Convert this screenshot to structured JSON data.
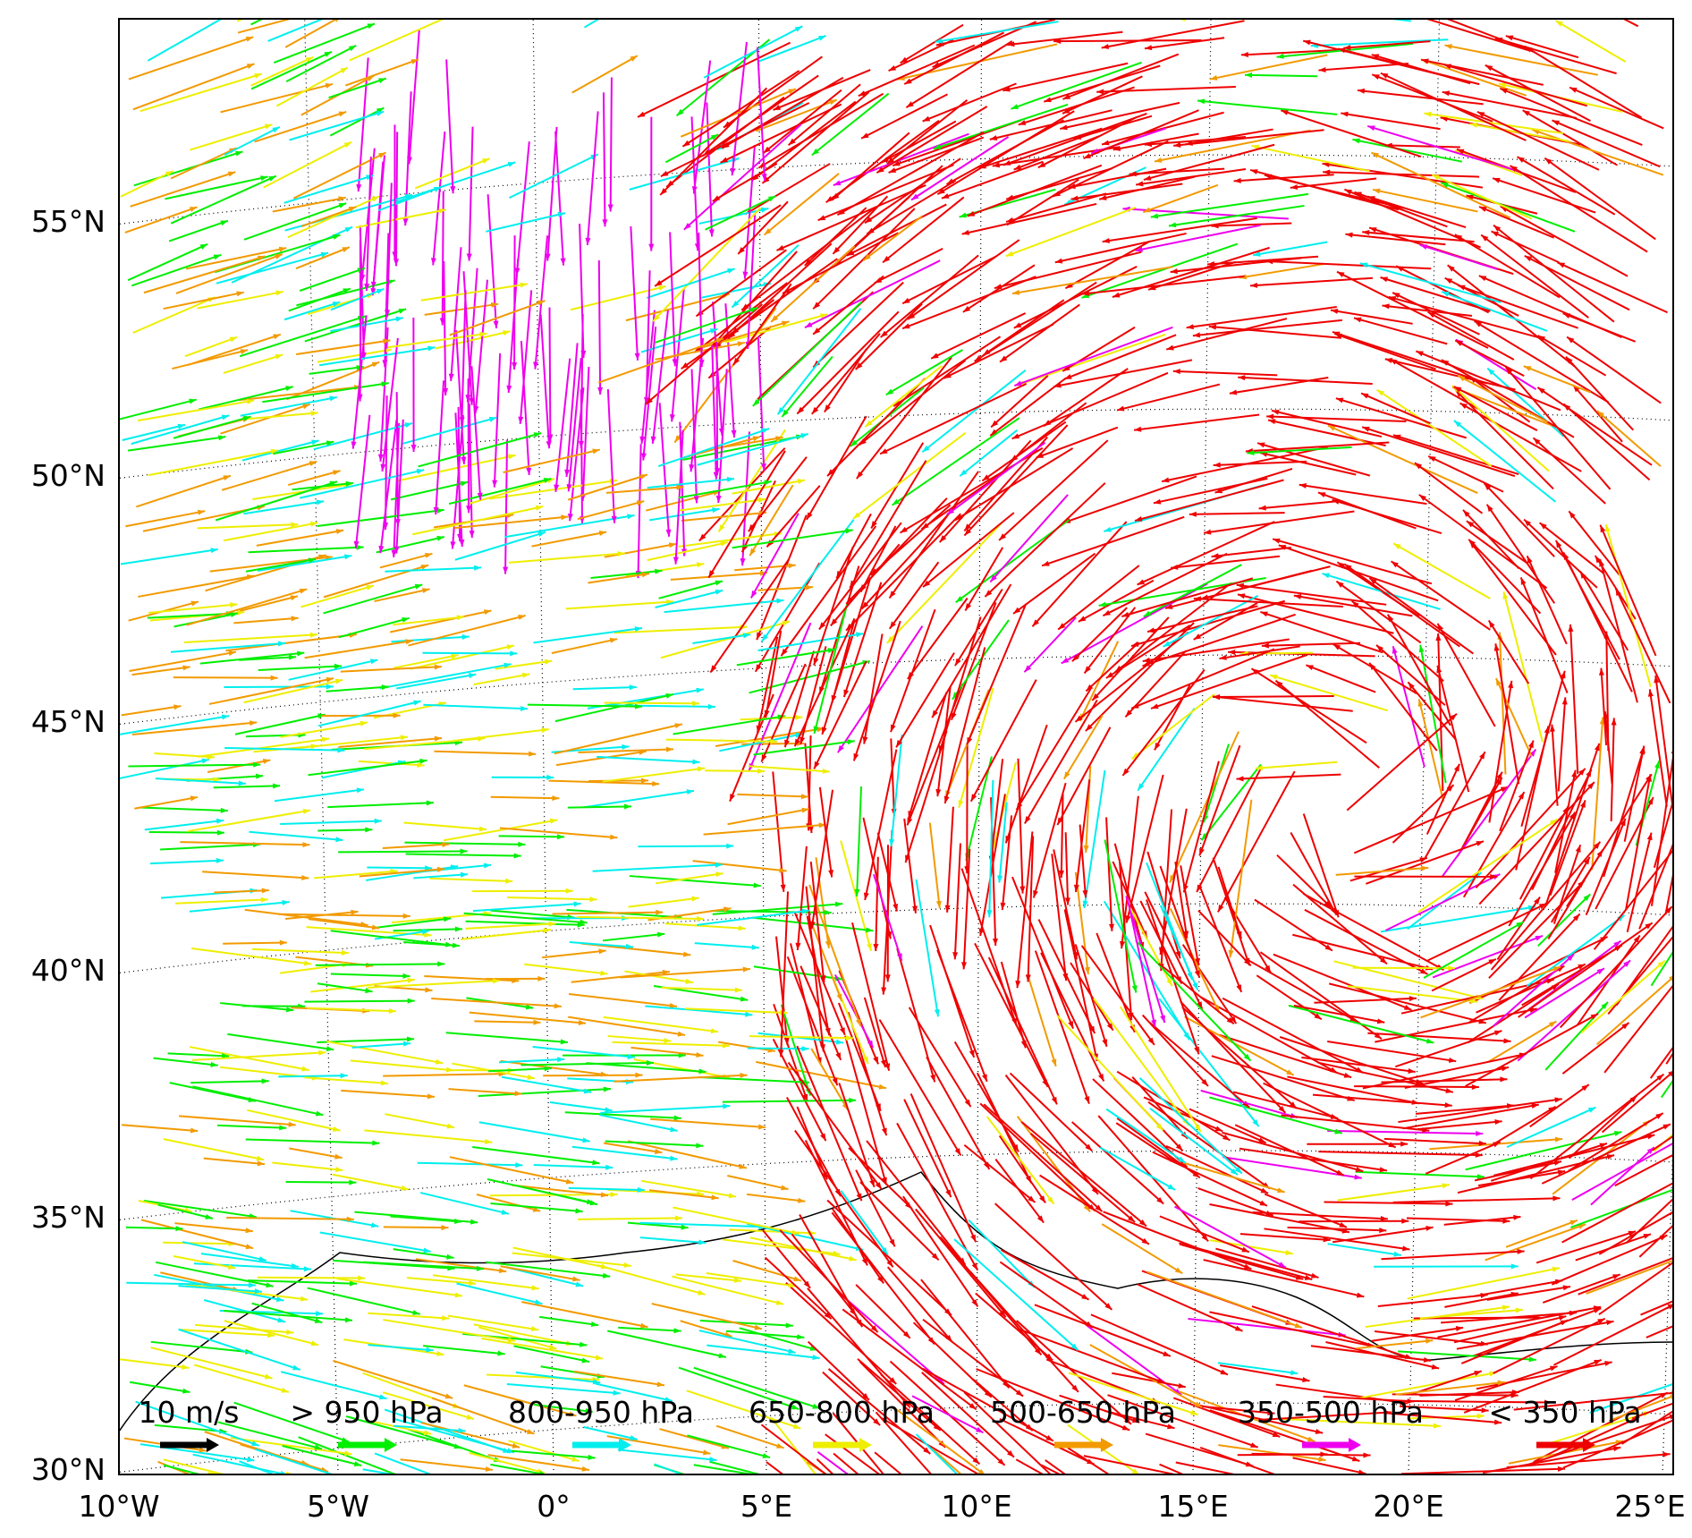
{
  "map": {
    "lat_labels": [
      "55°N",
      "50°N",
      "45°N",
      "40°N",
      "35°N",
      "30°N"
    ],
    "lon_labels": [
      "10°W",
      "5°W",
      "0°",
      "5°E",
      "10°E",
      "15°E",
      "20°E",
      "25°E"
    ],
    "legend": [
      {
        "label": "10 m/s",
        "color": "#000000"
      },
      {
        "label": "> 950 hPa",
        "color": "#00ee00"
      },
      {
        "label": "800-950 hPa",
        "color": "#00eeee"
      },
      {
        "label": "650-800 hPa",
        "color": "#eeee00"
      },
      {
        "label": "500-650 hPa",
        "color": "#f29a00"
      },
      {
        "label": "350-500 hPa",
        "color": "#ee00ee"
      },
      {
        "label": "< 350 hPa",
        "color": "#ee0000"
      }
    ]
  }
}
